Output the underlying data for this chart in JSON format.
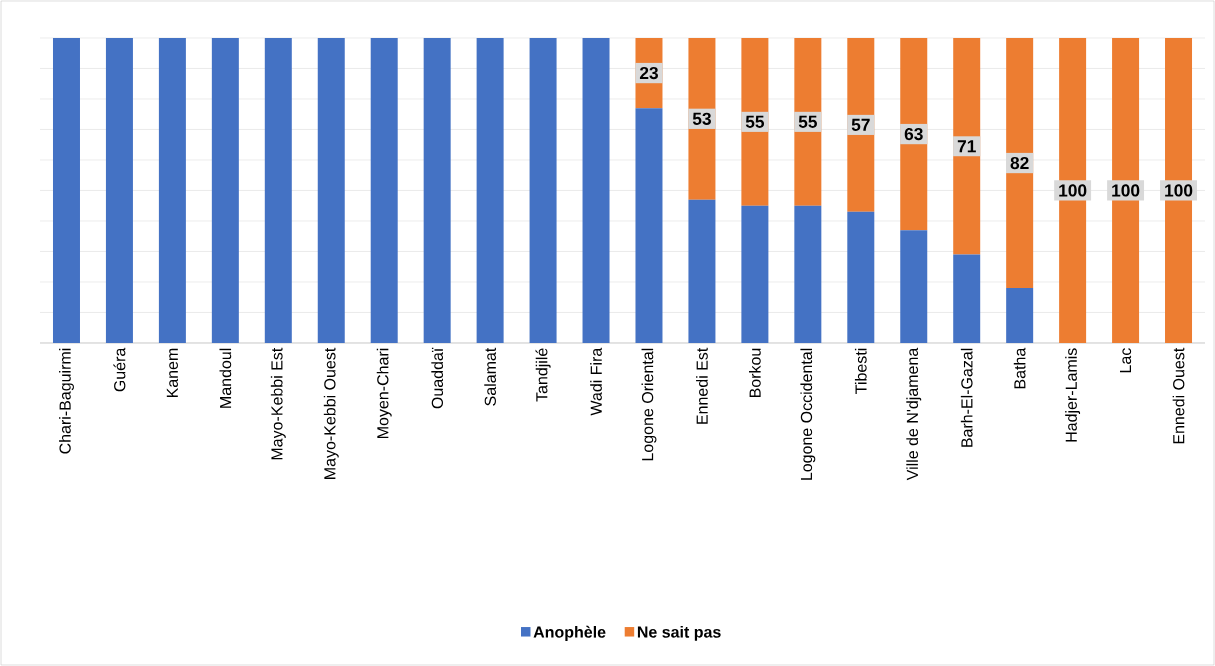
{
  "chart_data": {
    "type": "bar",
    "stacked": true,
    "categories": [
      "Chari-Baguirmi",
      "Guéra",
      "Kanem",
      "Mandoul",
      "Mayo-Kebbi Est",
      "Mayo-Kebbi Ouest",
      "Moyen-Chari",
      "Ouaddaï",
      "Salamat",
      "Tandjilé",
      "Wadi Fira",
      "Logone Oriental",
      "Ennedi Est",
      "Borkou",
      "Logone Occidental",
      "Tibesti",
      "Ville de N'djamena",
      "Barh-El-Gazal",
      "Batha",
      "Hadjer-Lamis",
      "Lac",
      "Ennedi Ouest"
    ],
    "series": [
      {
        "name": "Anophèle",
        "color": "#4472c4",
        "values": [
          100,
          100,
          100,
          100,
          100,
          100,
          100,
          100,
          100,
          100,
          100,
          77,
          47,
          45,
          45,
          43,
          37,
          29,
          18,
          0,
          0,
          0
        ]
      },
      {
        "name": "Ne sait pas",
        "color": "#ed7d31",
        "values": [
          0,
          0,
          0,
          0,
          0,
          0,
          0,
          0,
          0,
          0,
          0,
          23,
          53,
          55,
          55,
          57,
          63,
          71,
          82,
          100,
          100,
          100
        ],
        "value_labels": [
          null,
          null,
          null,
          null,
          null,
          null,
          null,
          null,
          null,
          null,
          null,
          "23",
          "53",
          "55",
          "55",
          "57",
          "63",
          "71",
          "82",
          "100",
          "100",
          "100"
        ]
      }
    ],
    "ylim": [
      0,
      100
    ],
    "yticks": [
      {
        "value": 0,
        "label": null
      },
      {
        "value": 10,
        "label": null
      },
      {
        "value": 20,
        "label": null
      },
      {
        "value": 30,
        "label": null
      },
      {
        "value": 40,
        "label": null
      },
      {
        "value": 50,
        "label": null
      },
      {
        "value": 60,
        "label": null
      },
      {
        "value": 70,
        "label": null
      },
      {
        "value": 80,
        "label": null
      },
      {
        "value": 90,
        "label": null
      },
      {
        "value": 100,
        "label": null
      }
    ],
    "tick_labels": "x",
    "grid": "y",
    "legend": "bottom"
  }
}
